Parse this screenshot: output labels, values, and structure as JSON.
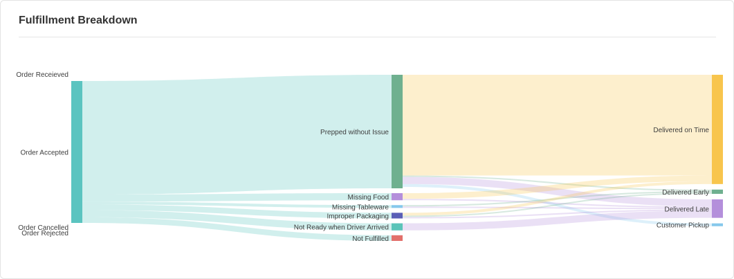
{
  "card": {
    "title": "Fulfillment Breakdown"
  },
  "chart_data": {
    "type": "sankey",
    "title": "Fulfillment Breakdown",
    "nodes": [
      {
        "id": "order_received",
        "label": "Order Receieved",
        "column": 0,
        "value": 0,
        "color": "#5bbfbd"
      },
      {
        "id": "order_accepted",
        "label": "Order Accepted",
        "column": 0,
        "value": 100,
        "color": "#5bc4c0"
      },
      {
        "id": "order_cancelled",
        "label": "Order Cancelled",
        "column": 0,
        "value": 0,
        "color": "#5bbfbd"
      },
      {
        "id": "order_rejected",
        "label": "Order Rejected",
        "column": 0,
        "value": 0,
        "color": "#5bbfbd"
      },
      {
        "id": "prepped",
        "label": "Prepped without Issue",
        "column": 1,
        "value": 80,
        "color": "#6fb08f"
      },
      {
        "id": "missing_food",
        "label": "Missing Food",
        "column": 1,
        "value": 5,
        "color": "#b48fdb"
      },
      {
        "id": "missing_tableware",
        "label": "Missing Tableware",
        "column": 1,
        "value": 2,
        "color": "#86c8ec"
      },
      {
        "id": "improper_packaging",
        "label": "Improper Packaging",
        "column": 1,
        "value": 4,
        "color": "#5a5fb6"
      },
      {
        "id": "not_ready",
        "label": "Not Ready when Driver Arrived",
        "column": 1,
        "value": 5,
        "color": "#5bc4b9"
      },
      {
        "id": "not_fulfilled",
        "label": "Not Fulfilled",
        "column": 1,
        "value": 4,
        "color": "#e2706b"
      },
      {
        "id": "delivered_on_time",
        "label": "Delivered on Time",
        "column": 2,
        "value": 77,
        "color": "#f8c54d"
      },
      {
        "id": "delivered_early",
        "label": "Delivered Early",
        "column": 2,
        "value": 3,
        "color": "#6fb08f"
      },
      {
        "id": "delivered_late",
        "label": "Delivered Late",
        "column": 2,
        "value": 13,
        "color": "#b48fdb"
      },
      {
        "id": "customer_pickup",
        "label": "Customer Pickup",
        "column": 2,
        "value": 2,
        "color": "#86c8ec"
      }
    ],
    "links": [
      {
        "source": "order_accepted",
        "target": "prepped",
        "value": 80
      },
      {
        "source": "order_accepted",
        "target": "missing_food",
        "value": 5
      },
      {
        "source": "order_accepted",
        "target": "missing_tableware",
        "value": 2
      },
      {
        "source": "order_accepted",
        "target": "improper_packaging",
        "value": 4
      },
      {
        "source": "order_accepted",
        "target": "not_ready",
        "value": 5
      },
      {
        "source": "order_accepted",
        "target": "not_fulfilled",
        "value": 4
      },
      {
        "source": "prepped",
        "target": "delivered_on_time",
        "value": 71
      },
      {
        "source": "prepped",
        "target": "delivered_early",
        "value": 1
      },
      {
        "source": "prepped",
        "target": "delivered_late",
        "value": 5
      },
      {
        "source": "prepped",
        "target": "customer_pickup",
        "value": 2
      },
      {
        "source": "missing_food",
        "target": "delivered_on_time",
        "value": 4
      },
      {
        "source": "missing_food",
        "target": "delivered_late",
        "value": 1
      },
      {
        "source": "missing_tableware",
        "target": "delivered_early",
        "value": 1
      },
      {
        "source": "missing_tableware",
        "target": "delivered_late",
        "value": 1
      },
      {
        "source": "improper_packaging",
        "target": "delivered_on_time",
        "value": 2
      },
      {
        "source": "improper_packaging",
        "target": "delivered_early",
        "value": 1
      },
      {
        "source": "improper_packaging",
        "target": "delivered_late",
        "value": 1
      },
      {
        "source": "not_ready",
        "target": "delivered_late",
        "value": 5
      }
    ]
  }
}
